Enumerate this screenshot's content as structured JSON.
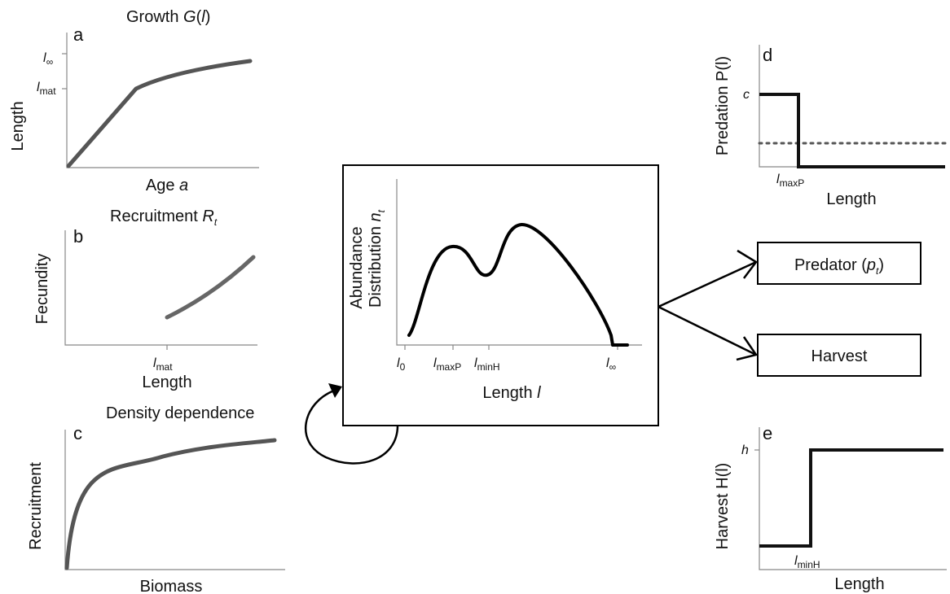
{
  "panels": {
    "a": {
      "letter": "a",
      "title_prefix": "Growth ",
      "title_symbol": "G",
      "title_paren_open": "(",
      "title_arg": "l",
      "title_paren_close": ")",
      "ylabel": "Length",
      "xlabel_prefix": "Age ",
      "xlabel_symbol": "a",
      "ytick_top_base": "l",
      "ytick_top_sub": "∞",
      "ytick_mid_base": "l",
      "ytick_mid_sub": "mat"
    },
    "b": {
      "letter": "b",
      "title_prefix": "Recruitment ",
      "title_symbol": "R",
      "title_sub": "t",
      "ylabel": "Fecundity",
      "xlabel": "Length",
      "xtick_base": "l",
      "xtick_sub": "mat"
    },
    "c": {
      "letter": "c",
      "title": "Density dependence",
      "ylabel": "Recruitment",
      "xlabel": "Biomass"
    },
    "center": {
      "ylabel_line1": "Abundance",
      "ylabel_line2_prefix": "Distribution ",
      "ylabel_symbol": "n",
      "ylabel_sub": "t",
      "xlabel_prefix": "Length ",
      "xlabel_symbol": "l",
      "xticks": [
        {
          "base": "l",
          "sub": "0"
        },
        {
          "base": "l",
          "sub": "maxP"
        },
        {
          "base": "l",
          "sub": "minH"
        },
        {
          "base": "l",
          "sub": "∞"
        }
      ]
    },
    "d": {
      "letter": "d",
      "ylabel": "Predation P(l)",
      "xlabel": "Length",
      "ytick": "c",
      "xtick_base": "l",
      "xtick_sub": "maxP"
    },
    "e": {
      "letter": "e",
      "ylabel": "Harvest H(l)",
      "xlabel": "Length",
      "ytick": "h",
      "xtick_base": "l",
      "xtick_sub": "minH"
    }
  },
  "boxes": {
    "predator_prefix": "Predator (",
    "predator_symbol": "p",
    "predator_sub": "t",
    "predator_suffix": ")",
    "harvest": "Harvest"
  },
  "colors": {
    "curve_gray": "#555555",
    "curve_black": "#000000",
    "axis_gray": "#888888"
  }
}
